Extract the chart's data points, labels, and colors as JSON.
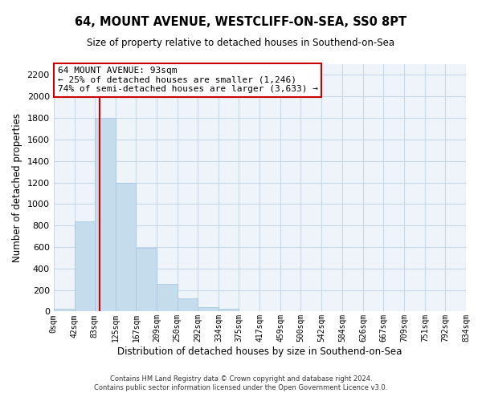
{
  "title": "64, MOUNT AVENUE, WESTCLIFF-ON-SEA, SS0 8PT",
  "subtitle": "Size of property relative to detached houses in Southend-on-Sea",
  "xlabel": "Distribution of detached houses by size in Southend-on-Sea",
  "ylabel": "Number of detached properties",
  "bar_edges": [
    0,
    42,
    83,
    125,
    167,
    209,
    250,
    292,
    334,
    375,
    417,
    459,
    500,
    542,
    584,
    626,
    667,
    709,
    751,
    792,
    834
  ],
  "bar_heights": [
    25,
    840,
    1800,
    1200,
    590,
    255,
    125,
    40,
    25,
    0,
    0,
    0,
    0,
    0,
    0,
    0,
    0,
    0,
    0,
    0
  ],
  "bar_color": "#c5dced",
  "bar_edgecolor": "#a8c8e0",
  "grid_color": "#c8d8e8",
  "red_line_x": 93,
  "annotation_title": "64 MOUNT AVENUE: 93sqm",
  "annotation_line1": "← 25% of detached houses are smaller (1,246)",
  "annotation_line2": "74% of semi-detached houses are larger (3,633) →",
  "annotation_box_edgecolor": "#cc0000",
  "annotation_box_facecolor": "#ffffff",
  "ylim": [
    0,
    2300
  ],
  "xlim": [
    0,
    834
  ],
  "yticks": [
    0,
    200,
    400,
    600,
    800,
    1000,
    1200,
    1400,
    1600,
    1800,
    2000,
    2200
  ],
  "tick_labels": [
    "0sqm",
    "42sqm",
    "83sqm",
    "125sqm",
    "167sqm",
    "209sqm",
    "250sqm",
    "292sqm",
    "334sqm",
    "375sqm",
    "417sqm",
    "459sqm",
    "500sqm",
    "542sqm",
    "584sqm",
    "626sqm",
    "667sqm",
    "709sqm",
    "751sqm",
    "792sqm",
    "834sqm"
  ],
  "footer_line1": "Contains HM Land Registry data © Crown copyright and database right 2024.",
  "footer_line2": "Contains public sector information licensed under the Open Government Licence v3.0.",
  "bg_color": "#ffffff",
  "plot_bg_color": "#eef4f9"
}
